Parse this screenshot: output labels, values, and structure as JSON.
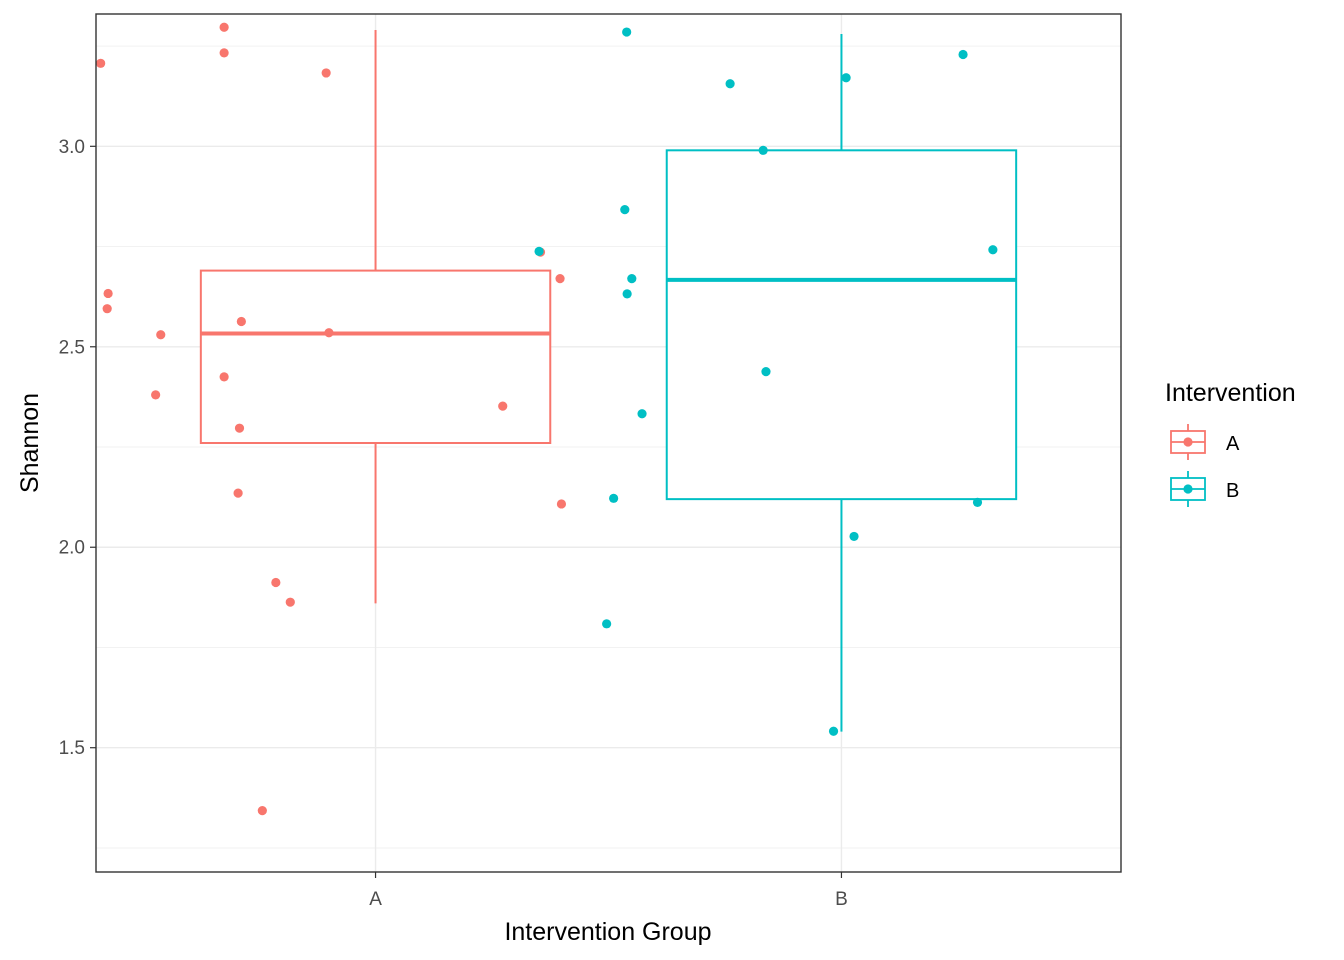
{
  "chart_data": {
    "type": "boxplot",
    "xlabel": "Intervention Group",
    "ylabel": "Shannon",
    "ylim": [
      1.19,
      3.33
    ],
    "yticks": [
      1.5,
      2.0,
      2.5,
      3.0
    ],
    "ytick_labels": [
      "1.5",
      "2.0",
      "2.5",
      "3.0"
    ],
    "categories": [
      "A",
      "B"
    ],
    "grid": true,
    "legend": {
      "title": "Intervention",
      "position": "right",
      "entries": [
        "A",
        "B"
      ]
    },
    "colors": {
      "A": "#F8766D",
      "B": "#00BFC4"
    },
    "boxes": [
      {
        "group": "A",
        "lower_whisker": 1.86,
        "q1": 2.26,
        "median": 2.533,
        "q3": 2.69,
        "upper_whisker": 3.29
      },
      {
        "group": "B",
        "lower_whisker": 1.54,
        "q1": 2.12,
        "median": 2.667,
        "q3": 2.99,
        "upper_whisker": 3.28
      }
    ],
    "points": {
      "A": [
        {
          "x": 0.41,
          "y": 3.207
        },
        {
          "x": 0.675,
          "y": 3.297
        },
        {
          "x": 0.675,
          "y": 3.233
        },
        {
          "x": 0.894,
          "y": 3.183
        },
        {
          "x": 1.354,
          "y": 2.736
        },
        {
          "x": 1.396,
          "y": 2.67
        },
        {
          "x": 0.426,
          "y": 2.633
        },
        {
          "x": 0.424,
          "y": 2.595
        },
        {
          "x": 0.712,
          "y": 2.563
        },
        {
          "x": 0.539,
          "y": 2.53
        },
        {
          "x": 0.9,
          "y": 2.535
        },
        {
          "x": 0.675,
          "y": 2.425
        },
        {
          "x": 0.528,
          "y": 2.38
        },
        {
          "x": 1.273,
          "y": 2.352
        },
        {
          "x": 0.708,
          "y": 2.297
        },
        {
          "x": 0.705,
          "y": 2.135
        },
        {
          "x": 1.399,
          "y": 2.108
        },
        {
          "x": 0.786,
          "y": 1.912
        },
        {
          "x": 0.817,
          "y": 1.863
        },
        {
          "x": 0.757,
          "y": 1.343
        }
      ],
      "B": [
        {
          "x": 1.539,
          "y": 3.285
        },
        {
          "x": 2.01,
          "y": 3.171
        },
        {
          "x": 2.261,
          "y": 3.229
        },
        {
          "x": 1.761,
          "y": 3.156
        },
        {
          "x": 1.832,
          "y": 2.99
        },
        {
          "x": 1.535,
          "y": 2.842
        },
        {
          "x": 1.351,
          "y": 2.738
        },
        {
          "x": 2.325,
          "y": 2.742
        },
        {
          "x": 1.55,
          "y": 2.67
        },
        {
          "x": 1.54,
          "y": 2.632
        },
        {
          "x": 1.838,
          "y": 2.438
        },
        {
          "x": 1.572,
          "y": 2.333
        },
        {
          "x": 1.511,
          "y": 2.122
        },
        {
          "x": 2.292,
          "y": 2.112
        },
        {
          "x": 2.027,
          "y": 2.027
        },
        {
          "x": 1.496,
          "y": 1.809
        },
        {
          "x": 1.983,
          "y": 1.541
        }
      ]
    }
  }
}
